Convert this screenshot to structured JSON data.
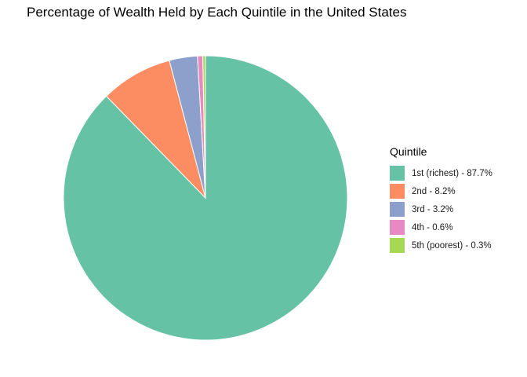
{
  "chart_data": {
    "type": "pie",
    "title": "Percentage of Wealth Held by Each Quintile in the United States",
    "legend_title": "Quintile",
    "legend_position": "right",
    "start_angle_deg": 0,
    "direction": "clockwise",
    "slices": [
      {
        "category": "1st (richest)",
        "label": "1st (richest) - 87.7%",
        "value": 87.7,
        "color": "#66C2A5"
      },
      {
        "category": "2nd",
        "label": "2nd - 8.2%",
        "value": 8.2,
        "color": "#FC8D62"
      },
      {
        "category": "3rd",
        "label": "3rd - 3.2%",
        "value": 3.2,
        "color": "#8DA0CB"
      },
      {
        "category": "4th",
        "label": "4th - 0.6%",
        "value": 0.6,
        "color": "#E78AC3"
      },
      {
        "category": "5th (poorest)",
        "label": "5th (poorest) - 0.3%",
        "value": 0.3,
        "color": "#A6D854"
      }
    ],
    "slice_border_color": "#ffffff"
  }
}
